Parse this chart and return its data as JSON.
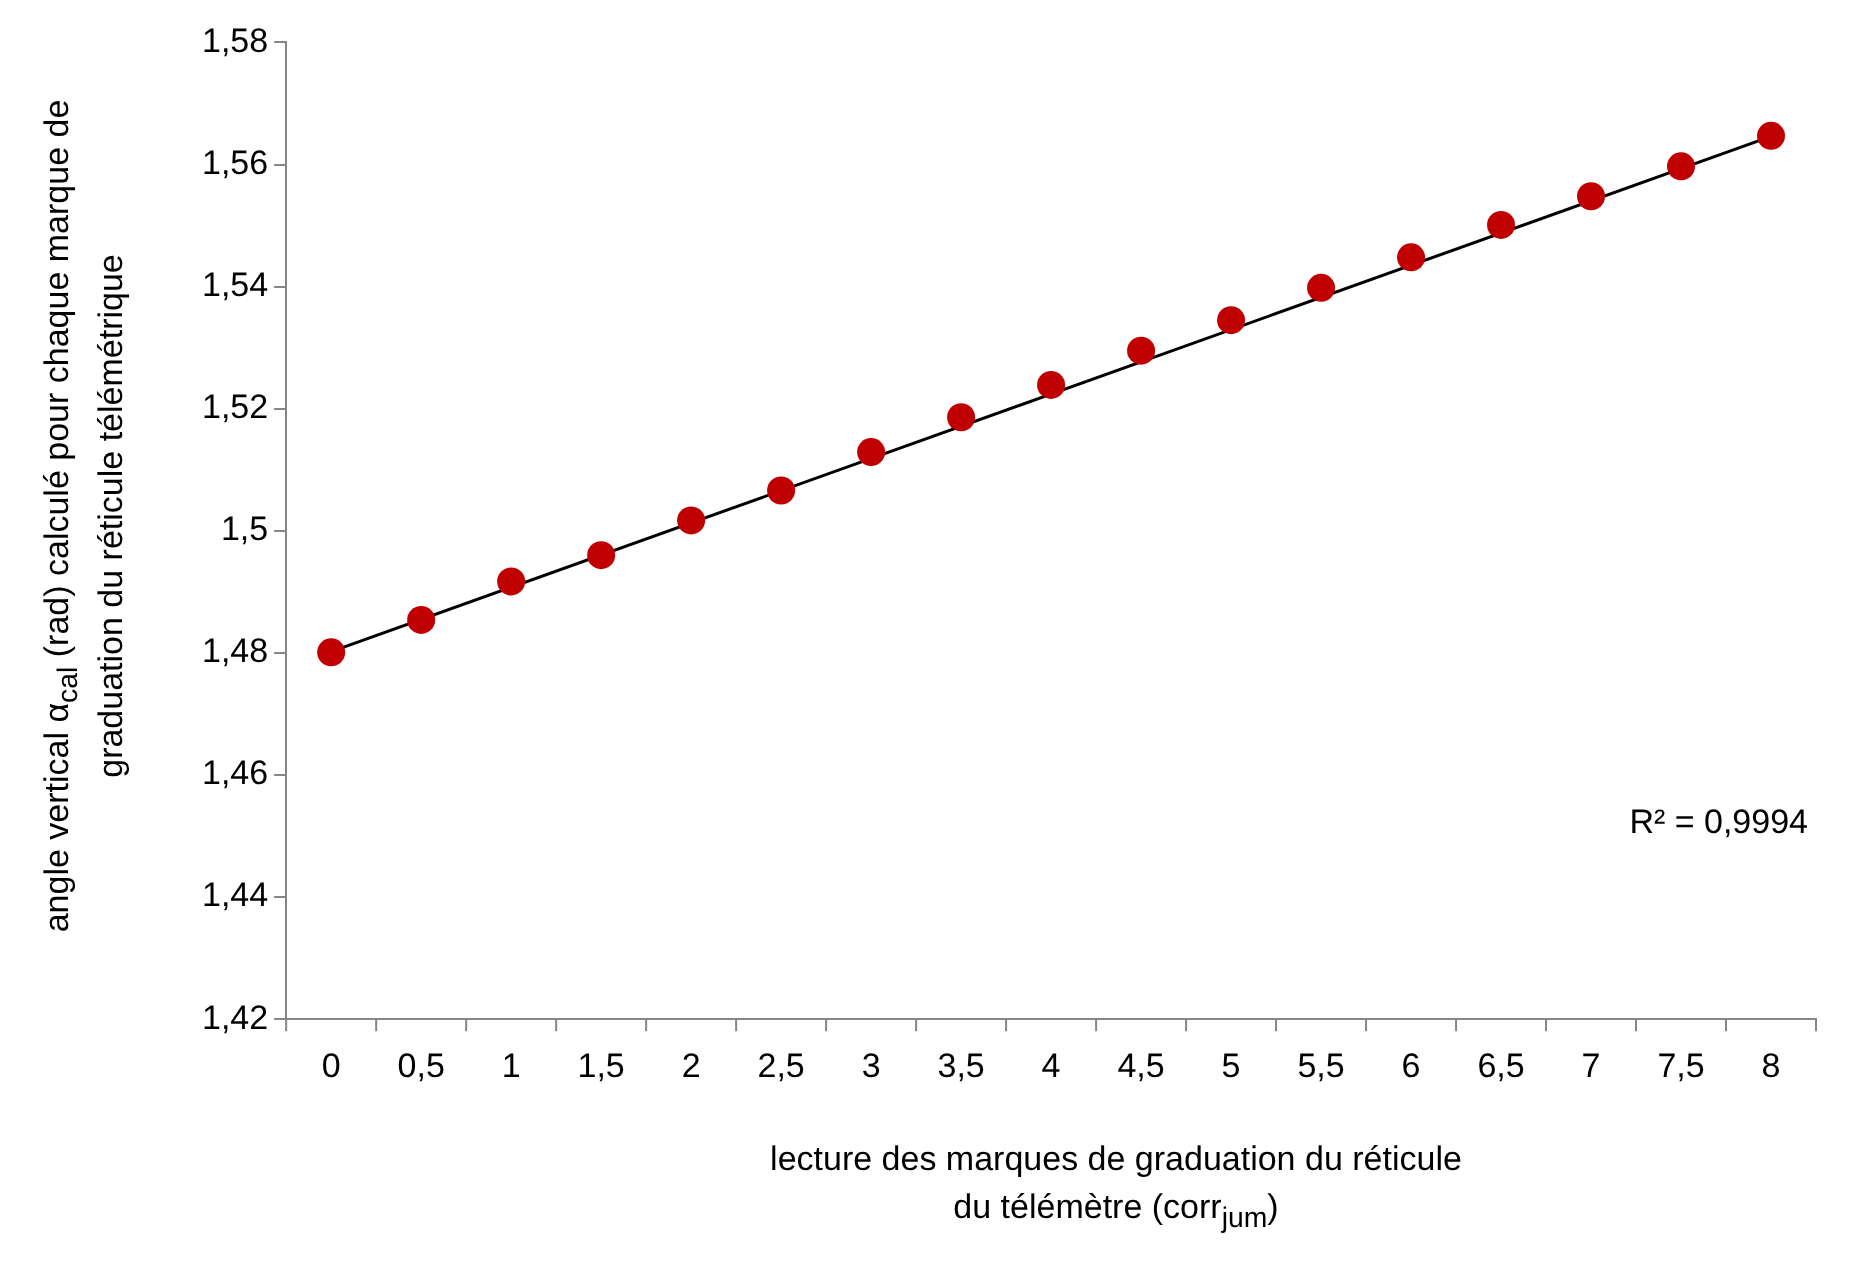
{
  "chart_data": {
    "type": "scatter",
    "xlabel": "lecture des marques de graduation du réticule du télémètre (corr$_{jum}$)",
    "ylabel": "angle vertical α$_{cal}$ (rad) calculé pour chaque marque de graduation du réticule télémétrique",
    "categories": [
      "0",
      "0,5",
      "1",
      "1,5",
      "2",
      "2,5",
      "3",
      "3,5",
      "4",
      "4,5",
      "5",
      "5,5",
      "6",
      "6,5",
      "7",
      "7,5",
      "8"
    ],
    "series": [
      {
        "type": "scatter",
        "marker": "circle",
        "color": "#c00000",
        "values": [
          1.4801,
          1.4854,
          1.4917,
          1.496,
          1.5017,
          1.5066,
          1.5129,
          1.5186,
          1.5239,
          1.5295,
          1.5345,
          1.5398,
          1.5448,
          1.5501,
          1.5548,
          1.5597,
          1.5647
        ]
      },
      {
        "type": "line",
        "marker": "none",
        "color": "#000000",
        "x": [
          "0",
          "8"
        ],
        "values": [
          1.4802,
          1.5646
        ]
      }
    ],
    "ylim": [
      1.42,
      1.58
    ],
    "yticks": [
      {
        "value": 1.42,
        "label": "1,42"
      },
      {
        "value": 1.44,
        "label": "1,44"
      },
      {
        "value": 1.46,
        "label": "1,46"
      },
      {
        "value": 1.48,
        "label": "1,48"
      },
      {
        "value": 1.5,
        "label": "1,5"
      },
      {
        "value": 1.52,
        "label": "1,52"
      },
      {
        "value": 1.54,
        "label": "1,54"
      },
      {
        "value": 1.56,
        "label": "1,56"
      },
      {
        "value": 1.58,
        "label": "1,58"
      }
    ],
    "annotations": [
      "R² = 0,9994"
    ],
    "grid": false,
    "legend": false
  }
}
